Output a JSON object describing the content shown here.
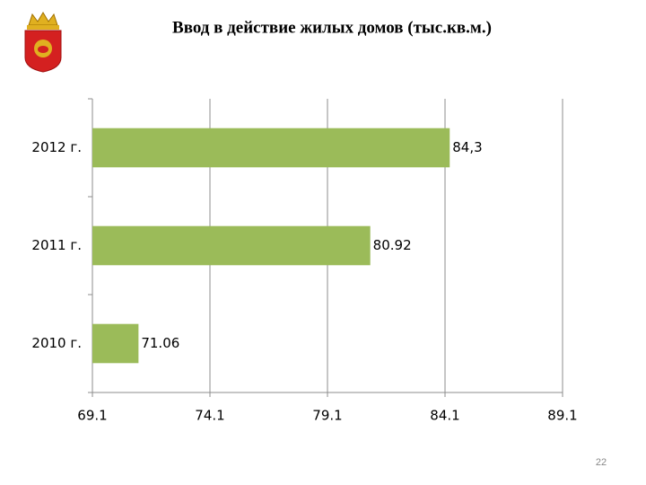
{
  "chart_data": {
    "type": "hbar",
    "title": "Ввод в действие жилых домов (тыс.кв.м.)",
    "categories": [
      "2012 г.",
      "2011 г.",
      "2010 г."
    ],
    "values": [
      84.3,
      80.92,
      71.06
    ],
    "value_labels": [
      "84,3",
      "80.92",
      "71.06"
    ],
    "color": "#9bbb59",
    "xlim": [
      69.1,
      89.1
    ],
    "xticks": [
      69.1,
      74.1,
      79.1,
      84.1,
      89.1
    ],
    "grid": true
  },
  "slide_number": "22"
}
